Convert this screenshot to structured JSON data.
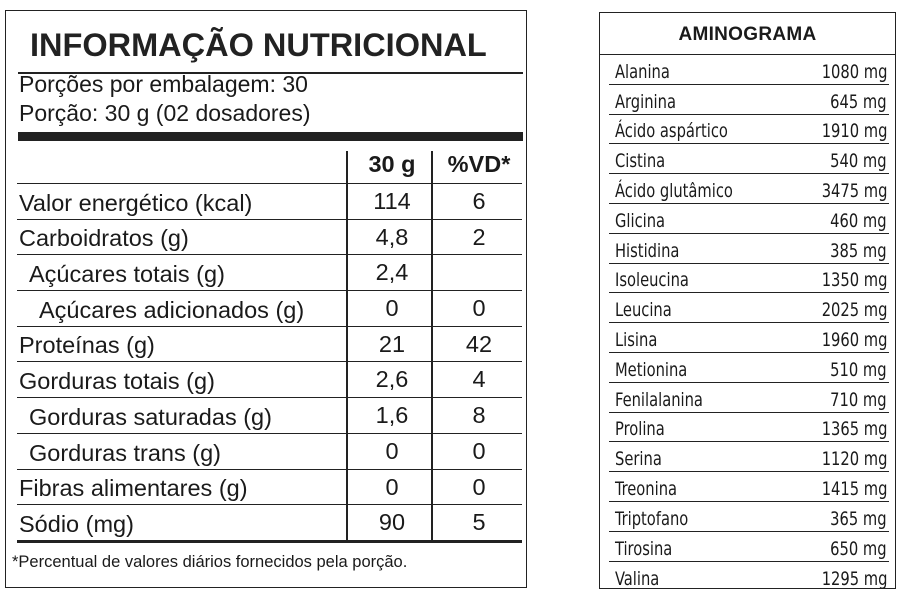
{
  "nutrition": {
    "title": "INFORMAÇÃO NUTRICIONAL",
    "servings_per_package": "Porções por embalagem: 30",
    "serving_size": "Porção: 30 g (02 dosadores)",
    "col_amount": "30 g",
    "col_dv": "%VD*",
    "rows": [
      {
        "name": "Valor energético (kcal)",
        "amount": "114",
        "dv": "6",
        "indent": 0
      },
      {
        "name": "Carboidratos (g)",
        "amount": "4,8",
        "dv": "2",
        "indent": 0
      },
      {
        "name": "Açúcares totais (g)",
        "amount": "2,4",
        "dv": "",
        "indent": 1
      },
      {
        "name": "Açúcares adicionados (g)",
        "amount": "0",
        "dv": "0",
        "indent": 2
      },
      {
        "name": "Proteínas (g)",
        "amount": "21",
        "dv": "42",
        "indent": 0
      },
      {
        "name": "Gorduras totais (g)",
        "amount": "2,6",
        "dv": "4",
        "indent": 0
      },
      {
        "name": "Gorduras saturadas (g)",
        "amount": "1,6",
        "dv": "8",
        "indent": 1
      },
      {
        "name": "Gorduras trans (g)",
        "amount": "0",
        "dv": "0",
        "indent": 1
      },
      {
        "name": "Fibras alimentares (g)",
        "amount": "0",
        "dv": "0",
        "indent": 0
      },
      {
        "name": "Sódio (mg)",
        "amount": "90",
        "dv": "5",
        "indent": 0
      }
    ],
    "footnote": "*Percentual de valores diários fornecidos pela porção."
  },
  "aminogram": {
    "title": "AMINOGRAMA",
    "rows": [
      {
        "name": "Alanina",
        "value": "1080 mg"
      },
      {
        "name": "Arginina",
        "value": "645 mg"
      },
      {
        "name": "Ácido aspártico",
        "value": "1910 mg"
      },
      {
        "name": "Cistina",
        "value": "540 mg"
      },
      {
        "name": "Ácido glutâmico",
        "value": "3475 mg"
      },
      {
        "name": "Glicina",
        "value": "460 mg"
      },
      {
        "name": "Histidina",
        "value": "385 mg"
      },
      {
        "name": "Isoleucina",
        "value": "1350 mg"
      },
      {
        "name": "Leucina",
        "value": "2025 mg"
      },
      {
        "name": "Lisina",
        "value": "1960 mg"
      },
      {
        "name": "Metionina",
        "value": "510 mg"
      },
      {
        "name": "Fenilalanina",
        "value": "710 mg"
      },
      {
        "name": "Prolina",
        "value": "1365 mg"
      },
      {
        "name": "Serina",
        "value": "1120 mg"
      },
      {
        "name": "Treonina",
        "value": "1415 mg"
      },
      {
        "name": "Triptofano",
        "value": "365 mg"
      },
      {
        "name": "Tirosina",
        "value": "650 mg"
      },
      {
        "name": "Valina",
        "value": "1295 mg"
      }
    ]
  }
}
